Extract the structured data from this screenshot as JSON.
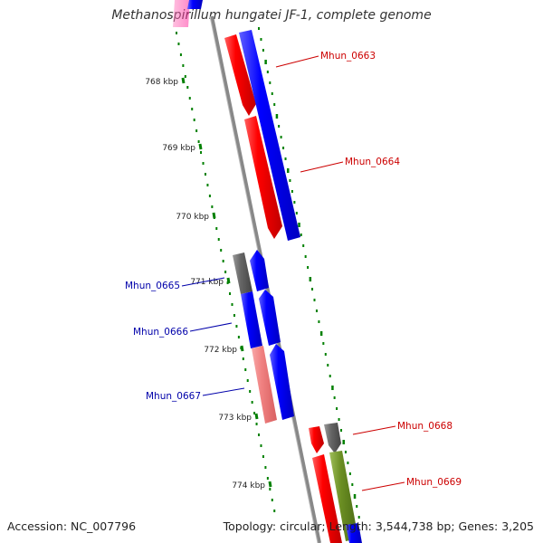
{
  "title": "Methanospirillum hungatei JF-1, complete genome",
  "footer": {
    "accession": "Accession: NC_007796",
    "summary": "Topology: circular; Length: 3,544,738 bp; Genes: 3,205"
  },
  "ticks": [
    {
      "label": "768 kbp",
      "kbp": 768
    },
    {
      "label": "769 kbp",
      "kbp": 769
    },
    {
      "label": "770 kbp",
      "kbp": 770
    },
    {
      "label": "771 kbp",
      "kbp": 771
    },
    {
      "label": "772 kbp",
      "kbp": 772
    },
    {
      "label": "773 kbp",
      "kbp": 773
    },
    {
      "label": "774 kbp",
      "kbp": 774
    }
  ],
  "genes": [
    {
      "id": "Mhun_0663",
      "strand": "+"
    },
    {
      "id": "Mhun_0664",
      "strand": "+"
    },
    {
      "id": "Mhun_0665",
      "strand": "-"
    },
    {
      "id": "Mhun_0666",
      "strand": "-"
    },
    {
      "id": "Mhun_0667",
      "strand": "-"
    },
    {
      "id": "Mhun_0668",
      "strand": "+"
    },
    {
      "id": "Mhun_0669",
      "strand": "+"
    }
  ],
  "colors": {
    "forward_label": "#cc0000",
    "reverse_label": "#0000aa",
    "red_feature": "#ff0000",
    "blue_feature": "#0000ff",
    "pink_feature": "#f08080",
    "gray_feature": "#666666",
    "olive_feature": "#6b8e23",
    "tick": "#008000",
    "backbone": "#888888"
  }
}
